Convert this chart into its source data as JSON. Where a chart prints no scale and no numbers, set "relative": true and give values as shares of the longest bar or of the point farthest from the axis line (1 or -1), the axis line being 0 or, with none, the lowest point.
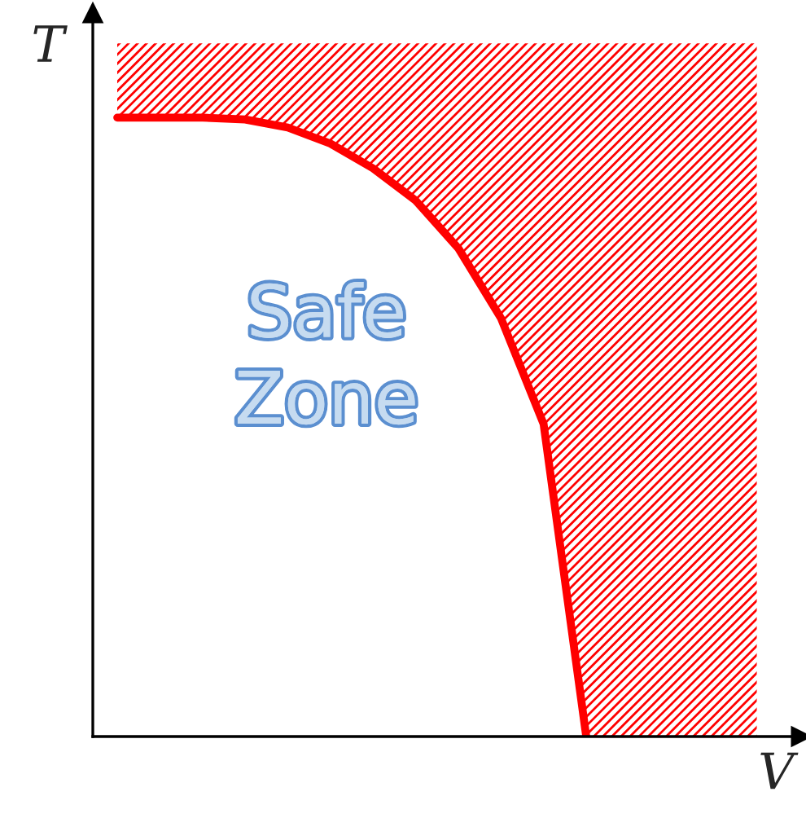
{
  "chart_data": {
    "type": "line",
    "relative": true,
    "xlabel": "V",
    "ylabel": "T",
    "categories": [
      null,
      null,
      null,
      null,
      null,
      null,
      null,
      null,
      null,
      null,
      null,
      null,
      null,
      null,
      null,
      null
    ],
    "series": [
      {
        "color": "#ff0000",
        "values": [
          1,
          1,
          1,
          0.997,
          0.984,
          0.958,
          0.918,
          0.866,
          0.789,
          0.676,
          0.505,
          0,
          null,
          null,
          null,
          null
        ],
        "lower": [
          1,
          1,
          1,
          0.997,
          0.984,
          0.958,
          0.918,
          0.866,
          0.789,
          0.676,
          0.505,
          0,
          0,
          0,
          0,
          0
        ],
        "upper": [
          1.12,
          1.12,
          1.12,
          1.12,
          1.12,
          1.12,
          1.12,
          1.12,
          1.12,
          1.12,
          1.12,
          1.12,
          1.12,
          1.12,
          1.12,
          1.12
        ]
      }
    ],
    "annotations": [
      "Safe\nZone"
    ],
    "legend": false,
    "marker": "none",
    "line_style": "solid"
  }
}
